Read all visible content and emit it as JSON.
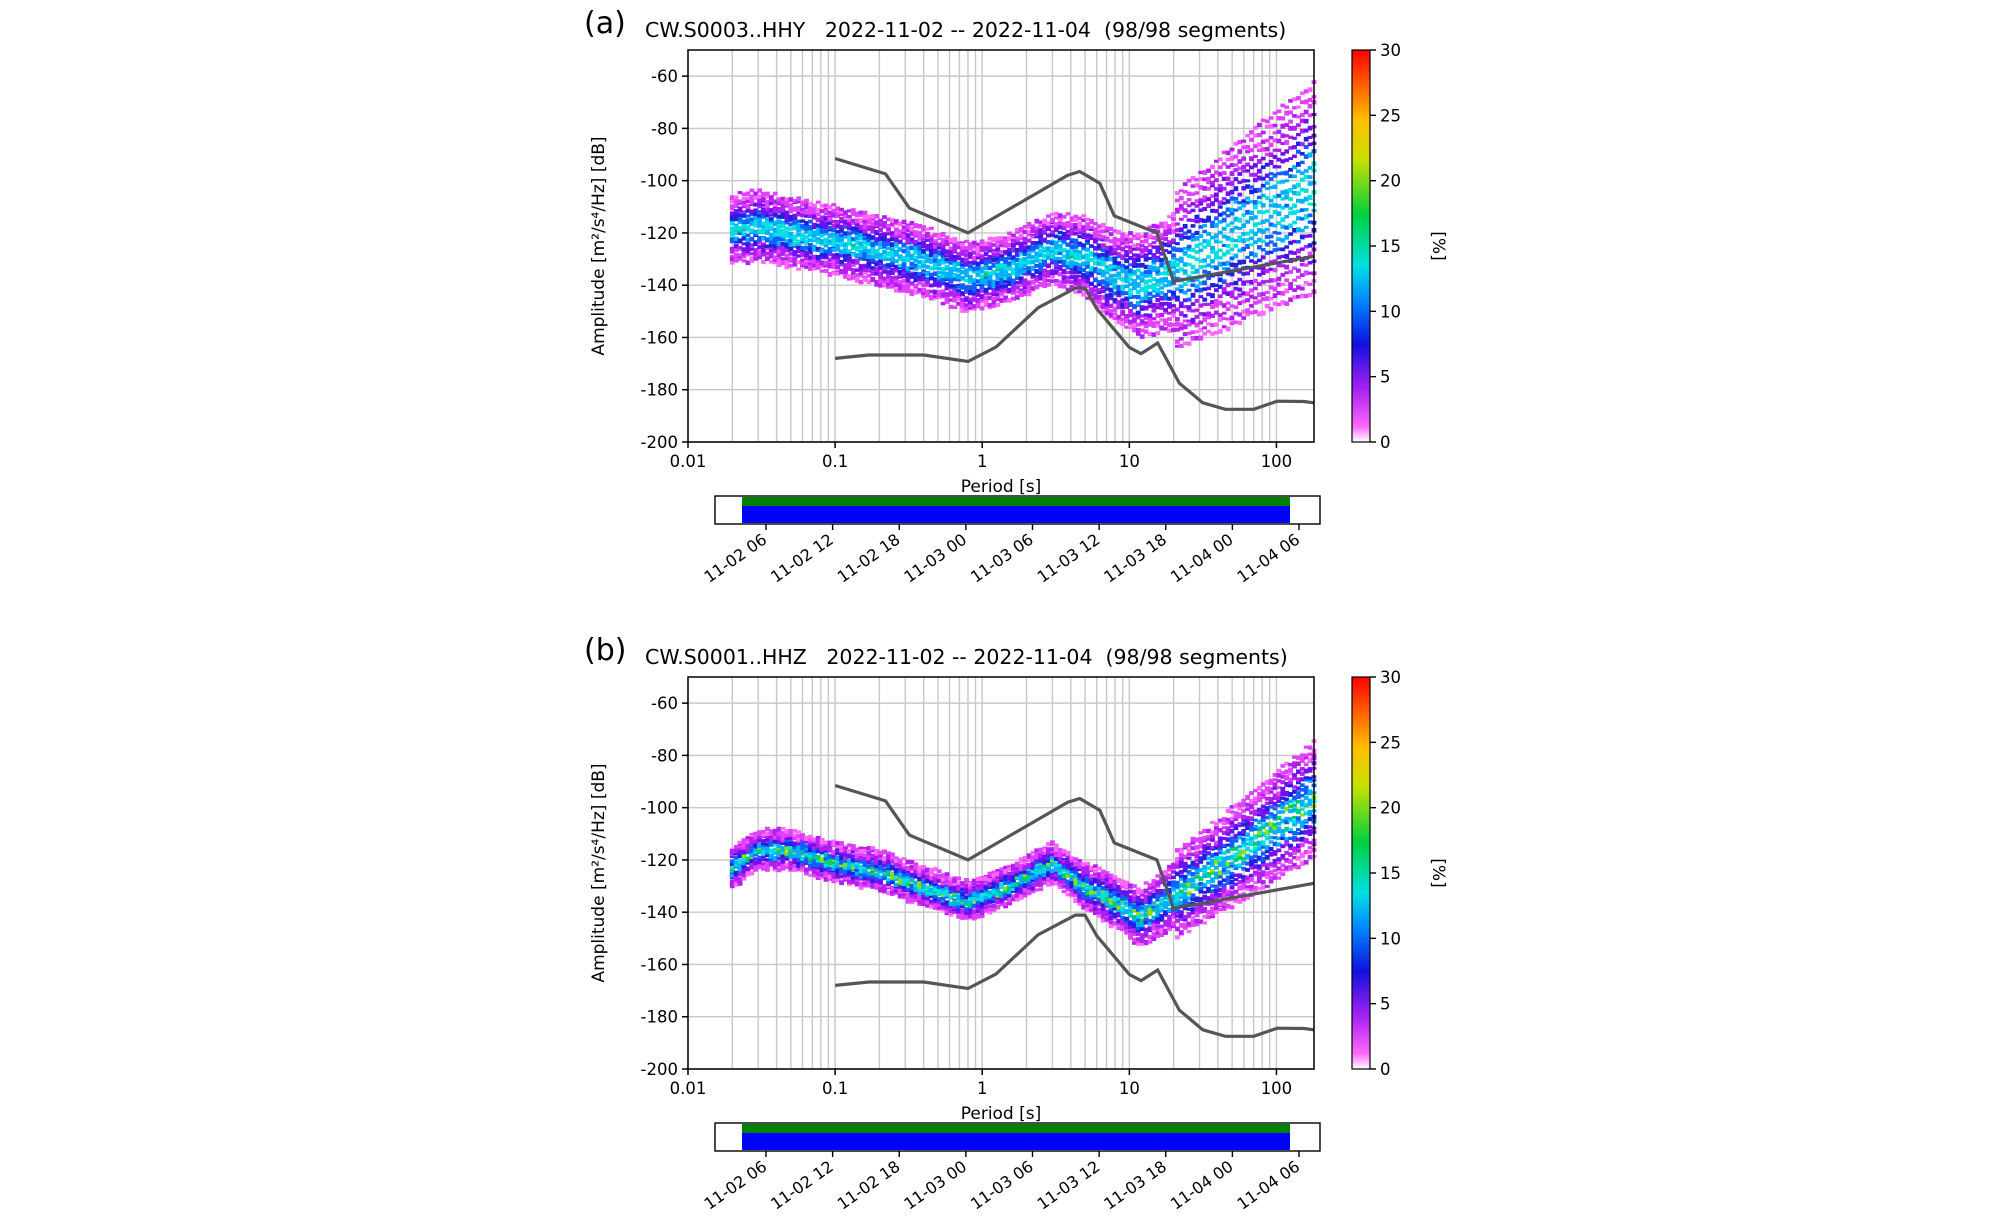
{
  "panels": [
    {
      "letter": "(a)",
      "title": "CW.S0003..HHY   2022-11-02 -- 2022-11-04  (98/98 segments)",
      "variant": "a"
    },
    {
      "letter": "(b)",
      "title": "CW.S0001..HHZ   2022-11-02 -- 2022-11-04  (98/98 segments)",
      "variant": "b"
    }
  ],
  "chart_data": [
    {
      "type": "heatmap",
      "title": "CW.S0003..HHY   2022-11-02 -- 2022-11-04  (98/98 segments)",
      "xlabel": "Period [s]",
      "ylabel": "Amplitude [m²/s⁴/Hz] [dB]",
      "x_scale": "log",
      "xlim": [
        0.01,
        180
      ],
      "ylim": [
        -200,
        -50
      ],
      "x_ticks": [
        "0.01",
        "0.1",
        "1",
        "10",
        "100"
      ],
      "y_ticks": [
        "-60",
        "-80",
        "-100",
        "-120",
        "-140",
        "-160",
        "-180",
        "-200"
      ],
      "colorbar": {
        "label": "[%]",
        "min": 0,
        "max": 30,
        "ticks": [
          "0",
          "5",
          "10",
          "15",
          "20",
          "25",
          "30"
        ]
      },
      "ppsd_mode_curve": {
        "x": [
          0.02,
          0.03,
          0.05,
          0.1,
          0.2,
          0.4,
          0.8,
          1.5,
          3,
          5,
          8,
          12,
          20,
          40,
          80,
          180
        ],
        "y": [
          -119,
          -117,
          -120,
          -123,
          -127,
          -131,
          -137,
          -134,
          -126,
          -129,
          -137,
          -140,
          -135,
          -125,
          -114,
          -103
        ]
      },
      "envelope_spread_db": 18,
      "nhnm": {
        "x": [
          0.1,
          0.22,
          0.32,
          0.8,
          3.8,
          4.6,
          6.3,
          7.9,
          15.4,
          20,
          354.8
        ],
        "y": [
          -91.5,
          -97.4,
          -110.5,
          -120,
          -98,
          -96.5,
          -101,
          -113.5,
          -120,
          -138.5,
          -126
        ]
      },
      "nlnm": {
        "x": [
          0.1,
          0.17,
          0.4,
          0.8,
          1.24,
          2.4,
          4.3,
          5,
          6,
          10,
          12,
          15.6,
          21.9,
          31.6,
          45,
          70,
          101,
          154,
          180
        ],
        "y": [
          -168,
          -166.7,
          -166.7,
          -169.2,
          -163.7,
          -148.6,
          -141.1,
          -141.1,
          -149,
          -163.8,
          -166.2,
          -162.1,
          -177.5,
          -185,
          -187.5,
          -187.5,
          -184.4,
          -184.5,
          -185
        ]
      },
      "timeline": {
        "ticks": [
          "11-02 06",
          "11-02 12",
          "11-02 18",
          "11-03 00",
          "11-03 06",
          "11-03 12",
          "11-03 18",
          "11-04 00",
          "11-04 06"
        ],
        "coverage": "continuous",
        "colors": {
          "data": "#008000",
          "ppsd": "#0000ff"
        }
      }
    },
    {
      "type": "heatmap",
      "title": "CW.S0001..HHZ   2022-11-02 -- 2022-11-04  (98/98 segments)",
      "xlabel": "Period [s]",
      "ylabel": "Amplitude [m²/s⁴/Hz] [dB]",
      "x_scale": "log",
      "xlim": [
        0.01,
        180
      ],
      "ylim": [
        -200,
        -50
      ],
      "x_ticks": [
        "0.01",
        "0.1",
        "1",
        "10",
        "100"
      ],
      "y_ticks": [
        "-60",
        "-80",
        "-100",
        "-120",
        "-140",
        "-160",
        "-180",
        "-200"
      ],
      "colorbar": {
        "label": "[%]",
        "min": 0,
        "max": 30,
        "ticks": [
          "0",
          "5",
          "10",
          "15",
          "20",
          "25",
          "30"
        ]
      },
      "ppsd_mode_curve": {
        "x": [
          0.02,
          0.03,
          0.05,
          0.1,
          0.2,
          0.4,
          0.8,
          1.5,
          3,
          5,
          8,
          12,
          20,
          40,
          80,
          180
        ],
        "y": [
          -123,
          -116,
          -116,
          -121,
          -124,
          -130,
          -136,
          -130,
          -121,
          -130,
          -136,
          -142,
          -134,
          -123,
          -111,
          -97
        ]
      },
      "envelope_spread_db": 10,
      "nhnm": {
        "x": [
          0.1,
          0.22,
          0.32,
          0.8,
          3.8,
          4.6,
          6.3,
          7.9,
          15.4,
          20,
          354.8
        ],
        "y": [
          -91.5,
          -97.4,
          -110.5,
          -120,
          -98,
          -96.5,
          -101,
          -113.5,
          -120,
          -138.5,
          -126
        ]
      },
      "nlnm": {
        "x": [
          0.1,
          0.17,
          0.4,
          0.8,
          1.24,
          2.4,
          4.3,
          5,
          6,
          10,
          12,
          15.6,
          21.9,
          31.6,
          45,
          70,
          101,
          154,
          180
        ],
        "y": [
          -168,
          -166.7,
          -166.7,
          -169.2,
          -163.7,
          -148.6,
          -141.1,
          -141.1,
          -149,
          -163.8,
          -166.2,
          -162.1,
          -177.5,
          -185,
          -187.5,
          -187.5,
          -184.4,
          -184.5,
          -185
        ]
      },
      "timeline": {
        "ticks": [
          "11-02 06",
          "11-02 12",
          "11-02 18",
          "11-03 00",
          "11-03 06",
          "11-03 12",
          "11-03 18",
          "11-04 00",
          "11-04 06"
        ],
        "coverage": "continuous",
        "colors": {
          "data": "#008000",
          "ppsd": "#0000ff"
        }
      }
    }
  ]
}
